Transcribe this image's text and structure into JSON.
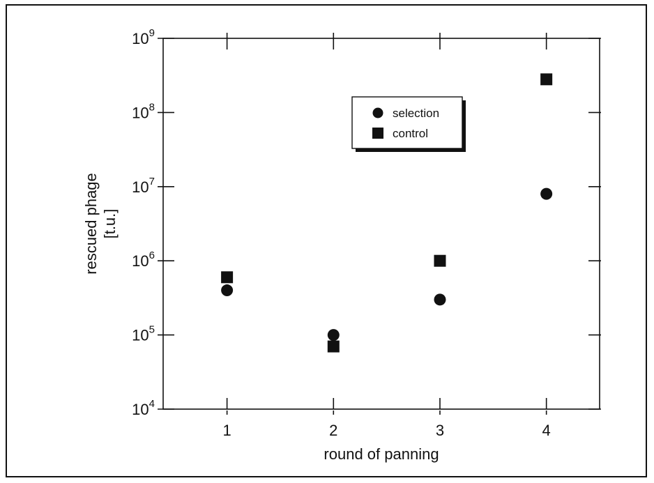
{
  "chart_data": {
    "type": "scatter",
    "title": "",
    "xlabel": "round of panning",
    "ylabel_lines": [
      "rescued phage",
      "[t.u.]"
    ],
    "x_ticks": [
      1,
      2,
      3,
      4
    ],
    "x_tick_labels": [
      "1",
      "2",
      "3",
      "4"
    ],
    "xlim": [
      0.4,
      4.5
    ],
    "y_scale": "log",
    "ylim": [
      10000,
      1000000000
    ],
    "y_ticks": [
      10000,
      100000,
      1000000,
      10000000,
      100000000,
      1000000000
    ],
    "y_tick_labels": [
      {
        "base": "10",
        "exp": "4"
      },
      {
        "base": "10",
        "exp": "5"
      },
      {
        "base": "10",
        "exp": "6"
      },
      {
        "base": "10",
        "exp": "7"
      },
      {
        "base": "10",
        "exp": "8"
      },
      {
        "base": "10",
        "exp": "9"
      }
    ],
    "grid": false,
    "legend_placement": "upper-center-right",
    "series": [
      {
        "name": "selection",
        "marker": "circle",
        "color": "#111111",
        "x": [
          1,
          2,
          3,
          4
        ],
        "y": [
          400000,
          100000,
          300000,
          8000000
        ]
      },
      {
        "name": "control",
        "marker": "square",
        "color": "#111111",
        "x": [
          1,
          2,
          3,
          4
        ],
        "y": [
          600000,
          70000,
          1000000,
          280000000
        ]
      }
    ]
  }
}
